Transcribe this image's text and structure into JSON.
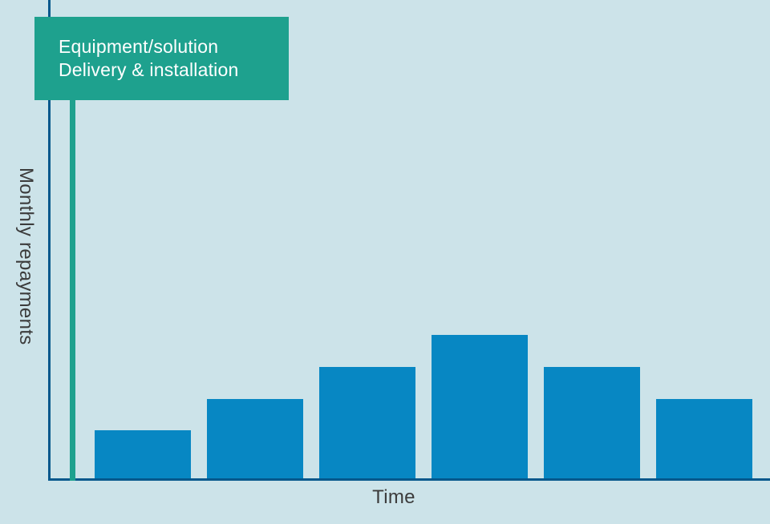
{
  "colors": {
    "background": "#cce3e9",
    "bar": "#0787c3",
    "axis": "#05588c",
    "accent_teal": "#1ea18e",
    "label_text": "#3c3c3c",
    "callout_text": "#ffffff"
  },
  "chart_data": {
    "type": "bar",
    "title": "",
    "x": [
      1,
      2,
      3,
      4,
      5,
      6
    ],
    "x_tick_labels": [],
    "y_tick_labels": [],
    "values": [
      1.5,
      2.5,
      3.5,
      4.5,
      3.5,
      2.5
    ],
    "values_unit": "relative height (no numeric scale shown)",
    "xlabel": "Time",
    "ylabel": "Monthly repayments",
    "ylim": [
      0,
      15
    ],
    "grid": false,
    "legend": false,
    "annotation": {
      "line1": "Equipment/solution",
      "line2": "Delivery & installation",
      "marker_position": "start of timeline, before first bar"
    }
  }
}
